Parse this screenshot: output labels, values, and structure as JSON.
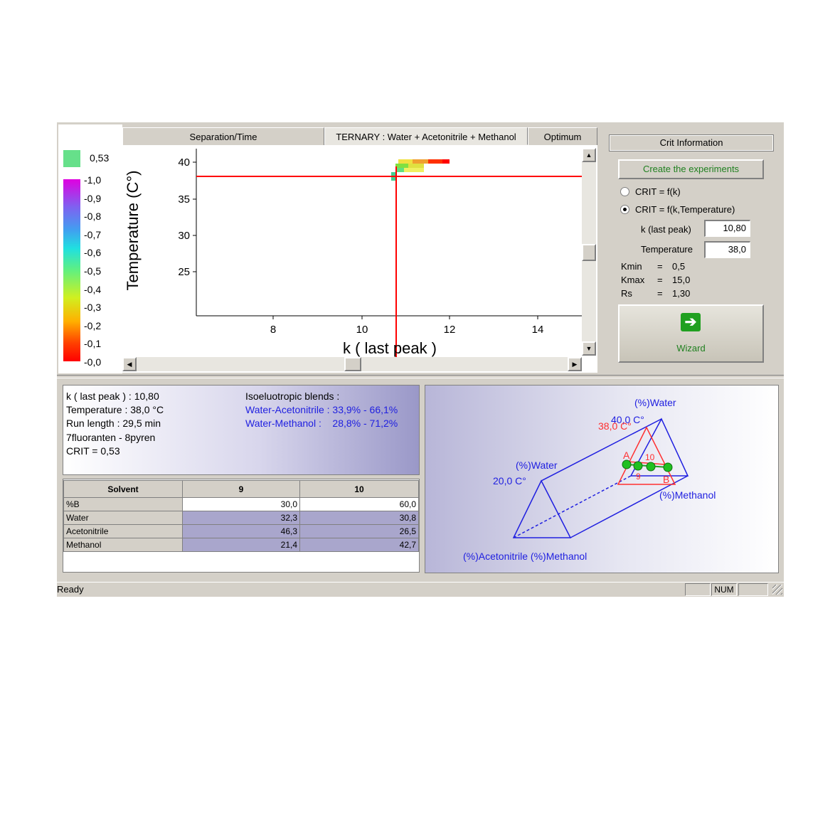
{
  "tabs": {
    "separation": "Separation/Time",
    "ternary": "TERNARY : Water + Acetonitrile + Methanol",
    "optimum": "Optimum"
  },
  "legend": {
    "current_value": "0,53",
    "current_color": "#66e08a",
    "ticks": [
      "1,0",
      "0,9",
      "0,8",
      "0,7",
      "0,6",
      "0,5",
      "0,4",
      "0,3",
      "0,2",
      "0,1",
      "0,0"
    ]
  },
  "plot": {
    "xlabel": "k ( last peak )",
    "ylabel": "Temperature  (C°)",
    "x_ticks": [
      "8",
      "10",
      "12",
      "14"
    ],
    "y_ticks": [
      "40",
      "35",
      "30",
      "25"
    ]
  },
  "crit_panel": {
    "title": "Crit Information",
    "create_button": "Create the experiments",
    "radio1": "CRIT = f(k)",
    "radio2": "CRIT = f(k,Temperature)",
    "k_label": "k (last peak)",
    "k_value": "10,80",
    "temp_label": "Temperature",
    "temp_value": "38,0",
    "kmin_label": "Kmin",
    "kmin_value": "0,5",
    "kmax_label": "Kmax",
    "kmax_value": "15,0",
    "rs_label": "Rs",
    "rs_value": "1,30",
    "eq": "=",
    "wizard": "Wizard"
  },
  "info": {
    "line1": "k ( last peak ) : 10,80",
    "line2": "Temperature : 38,0 °C",
    "line3": "Run length : 29,5 min",
    "line4": "7fluoranten - 8pyren",
    "line5": "CRIT = 0,53",
    "iso_title": "Isoeluotropic blends :",
    "iso1": "Water-Acetonitrile : 33,9% - 66,1%",
    "iso2": "Water-Methanol :    28,8% - 71,2%"
  },
  "table": {
    "headers": [
      "Solvent",
      "9",
      "10"
    ],
    "rows": [
      [
        "%B",
        "30,0",
        "60,0"
      ],
      [
        "Water",
        "32,3",
        "30,8"
      ],
      [
        "Acetonitrile",
        "46,3",
        "26,5"
      ],
      [
        "Methanol",
        "21,4",
        "42,7"
      ]
    ]
  },
  "prism": {
    "water_top": "(%)Water",
    "temp_high": "40,0 C°",
    "temp_sel": "38,0 C°",
    "point_a": "A",
    "point_b": "B",
    "point_9": "9",
    "point_10": "10",
    "water_left": "(%)Water",
    "temp_low": "20,0 C°",
    "methanol_right": "(%)Methanol",
    "bottom_label": "(%)Acetonitrile (%)Methanol"
  },
  "status": {
    "text": "Ready",
    "num": "NUM"
  }
}
